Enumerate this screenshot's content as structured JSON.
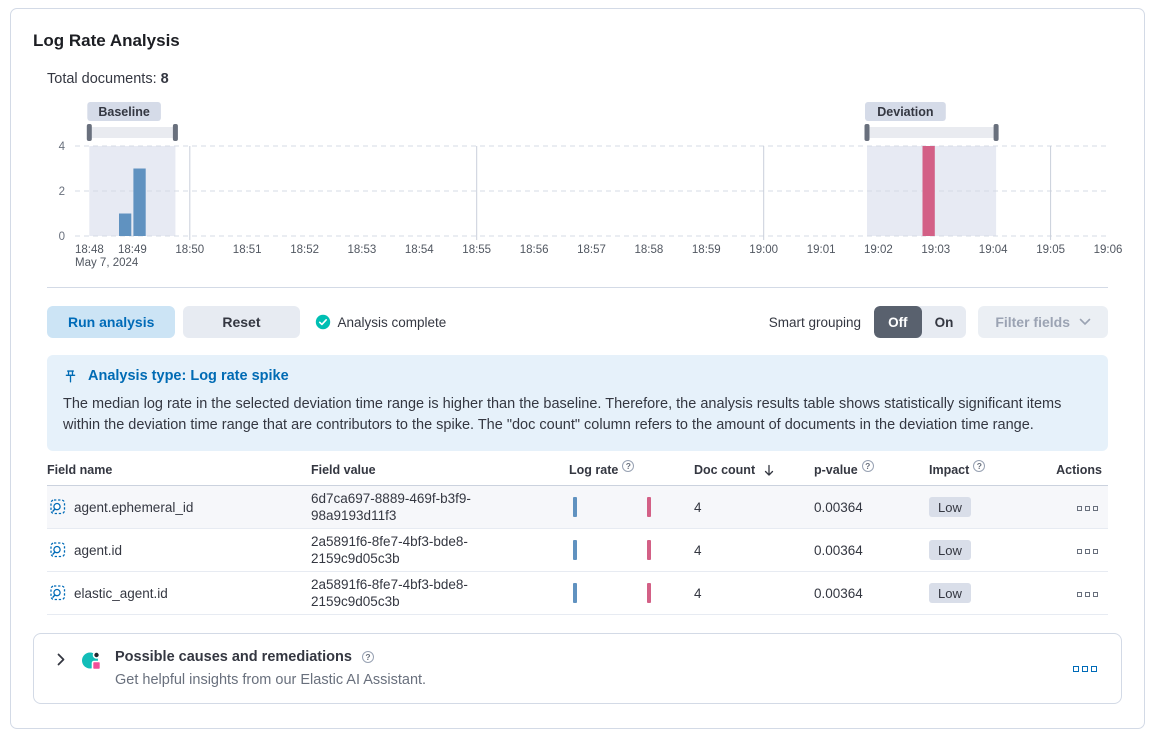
{
  "panel": {
    "title": "Log Rate Analysis"
  },
  "summary": {
    "label": "Total documents:",
    "value": "8"
  },
  "controls": {
    "run_label": "Run analysis",
    "reset_label": "Reset",
    "status_label": "Analysis complete",
    "smart_grouping_label": "Smart grouping",
    "off_label": "Off",
    "on_label": "On",
    "filter_fields_label": "Filter fields"
  },
  "callout": {
    "title": "Analysis type: Log rate spike",
    "body": "The median log rate in the selected deviation time range is higher than the baseline. Therefore, the analysis results table shows statistically significant items within the deviation time range that are contributors to the spike. The \"doc count\" column refers to the amount of documents in the deviation time range."
  },
  "table": {
    "headers": {
      "field_name": "Field name",
      "field_value": "Field value",
      "log_rate": "Log rate",
      "doc_count": "Doc count",
      "p_value": "p-value",
      "impact": "Impact",
      "actions": "Actions"
    },
    "rows": [
      {
        "field_name": "agent.ephemeral_id",
        "field_value": "6d7ca697-8889-469f-b3f9-98a9193d11f3",
        "doc_count": "4",
        "p_value": "0.00364",
        "impact": "Low"
      },
      {
        "field_name": "agent.id",
        "field_value": "2a5891f6-8fe7-4bf3-bde8-2159c9d05c3b",
        "doc_count": "4",
        "p_value": "0.00364",
        "impact": "Low"
      },
      {
        "field_name": "elastic_agent.id",
        "field_value": "2a5891f6-8fe7-4bf3-bde8-2159c9d05c3b",
        "doc_count": "4",
        "p_value": "0.00364",
        "impact": "Low"
      }
    ]
  },
  "ai_panel": {
    "title": "Possible causes and remediations",
    "subtitle": "Get helpful insights from our Elastic AI Assistant."
  },
  "colors": {
    "accent_blue": "#006BB8",
    "success_teal": "#00BFB3",
    "bar_blue": "#6092C0",
    "bar_pink": "#D36086",
    "window_shade": "#E7EAF3",
    "badge_bg": "#D5DBE8",
    "callout_bg": "#E6F1FA",
    "callout_title": "#006BB4"
  },
  "chart_data": {
    "type": "bar",
    "title": "Document count over time",
    "x_ticks": [
      "18:48",
      "18:49",
      "18:50",
      "18:51",
      "18:52",
      "18:53",
      "18:54",
      "18:55",
      "18:56",
      "18:57",
      "18:58",
      "18:59",
      "19:00",
      "19:01",
      "19:02",
      "19:03",
      "19:04",
      "19:05",
      "19:06"
    ],
    "x_date_label": "May 7, 2024",
    "y_ticks": [
      0,
      2,
      4
    ],
    "ylim": [
      0,
      4
    ],
    "x_gridline_indices": [
      2,
      7,
      12,
      17
    ],
    "bar_width_min": 0.25,
    "bars": [
      {
        "time": "18:48:45",
        "x_min": 0.75,
        "count": 1,
        "series": "baseline"
      },
      {
        "time": "18:49:00",
        "x_min": 1.0,
        "count": 3,
        "series": "baseline"
      },
      {
        "time": "19:02:45",
        "x_min": 14.75,
        "count": 4,
        "series": "deviation"
      }
    ],
    "windows": {
      "baseline": {
        "label": "Baseline",
        "from_min": 0.25,
        "to_min": 1.75
      },
      "deviation": {
        "label": "Deviation",
        "from_min": 13.8,
        "to_min": 16.05
      }
    }
  }
}
